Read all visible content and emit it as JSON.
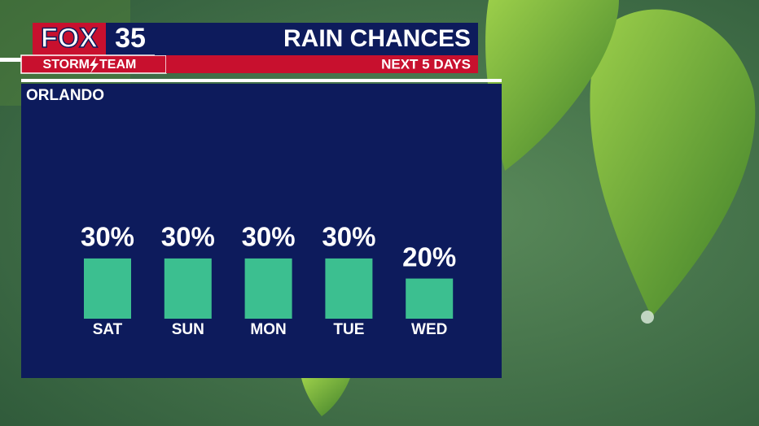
{
  "logo": {
    "brand": "FOX",
    "channel": "35",
    "left": "STORM",
    "right": "TEAM"
  },
  "chart_data": {
    "type": "bar",
    "title": "RAIN CHANCES",
    "subtitle": "NEXT 5 DAYS",
    "location": "ORLANDO",
    "categories": [
      "SAT",
      "SUN",
      "MON",
      "TUE",
      "WED"
    ],
    "values": [
      30,
      30,
      30,
      30,
      20
    ],
    "value_labels": [
      "30%",
      "30%",
      "30%",
      "30%",
      "20%"
    ],
    "color": "#3cbf90"
  }
}
